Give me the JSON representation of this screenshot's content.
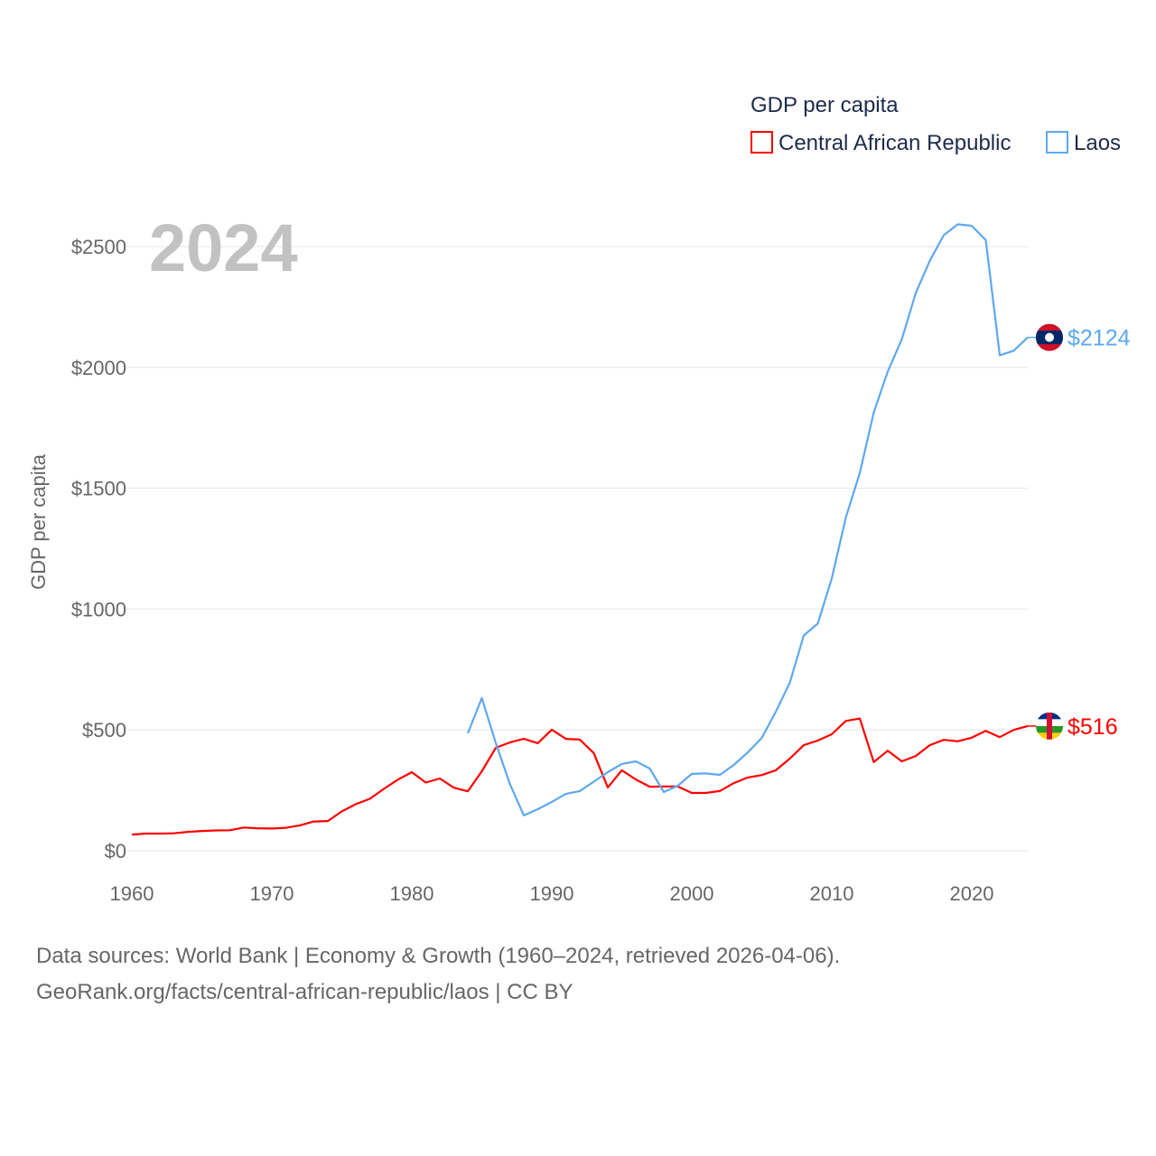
{
  "chart_data": {
    "type": "line",
    "title": "GDP per capita",
    "year_label": "2024",
    "xlabel": "",
    "ylabel": "GDP per capita",
    "xlim": [
      1960,
      2024
    ],
    "ylim": [
      0,
      2500
    ],
    "x_ticks": [
      1960,
      1970,
      1980,
      1990,
      2000,
      2010,
      2020
    ],
    "y_ticks": [
      0,
      500,
      1000,
      1500,
      2000,
      2500
    ],
    "y_tick_labels": [
      "$0",
      "$500",
      "$1000",
      "$1500",
      "$2000",
      "$2500"
    ],
    "grid": true,
    "legend_placement": "top-right",
    "series": [
      {
        "name": "Central African Republic",
        "color": "#ff0000",
        "end_label": "$516",
        "flag": "central-african-republic-flag",
        "start_year": 1960,
        "values": [
          67,
          71,
          71,
          72,
          78,
          82,
          84,
          85,
          96,
          93,
          92,
          95,
          105,
          121,
          123,
          163,
          193,
          215,
          256,
          294,
          325,
          282,
          299,
          261,
          246,
          329,
          426,
          448,
          463,
          445,
          501,
          463,
          460,
          404,
          262,
          333,
          295,
          265,
          266,
          266,
          239,
          239,
          247,
          280,
          303,
          313,
          333,
          381,
          437,
          456,
          482,
          537,
          547,
          367,
          414,
          370,
          392,
          437,
          459,
          453,
          468,
          496,
          470,
          500,
          516
        ]
      },
      {
        "name": "Laos",
        "color": "#5ea8ef",
        "end_label": "$2124",
        "flag": "laos-flag",
        "start_year": 1984,
        "values": [
          486,
          632,
          445,
          277,
          146,
          172,
          202,
          235,
          247,
          286,
          325,
          359,
          370,
          340,
          243,
          269,
          318,
          320,
          314,
          355,
          407,
          467,
          575,
          695,
          891,
          940,
          1127,
          1378,
          1563,
          1814,
          1983,
          2116,
          2308,
          2441,
          2547,
          2592,
          2586,
          2527,
          2050,
          2069,
          2124
        ]
      }
    ]
  },
  "footer": {
    "line1": "Data sources: World Bank | Economy & Growth (1960–2024, retrieved 2026-04-06).",
    "line2": "GeoRank.org/facts/central-african-republic/laos | CC BY"
  }
}
